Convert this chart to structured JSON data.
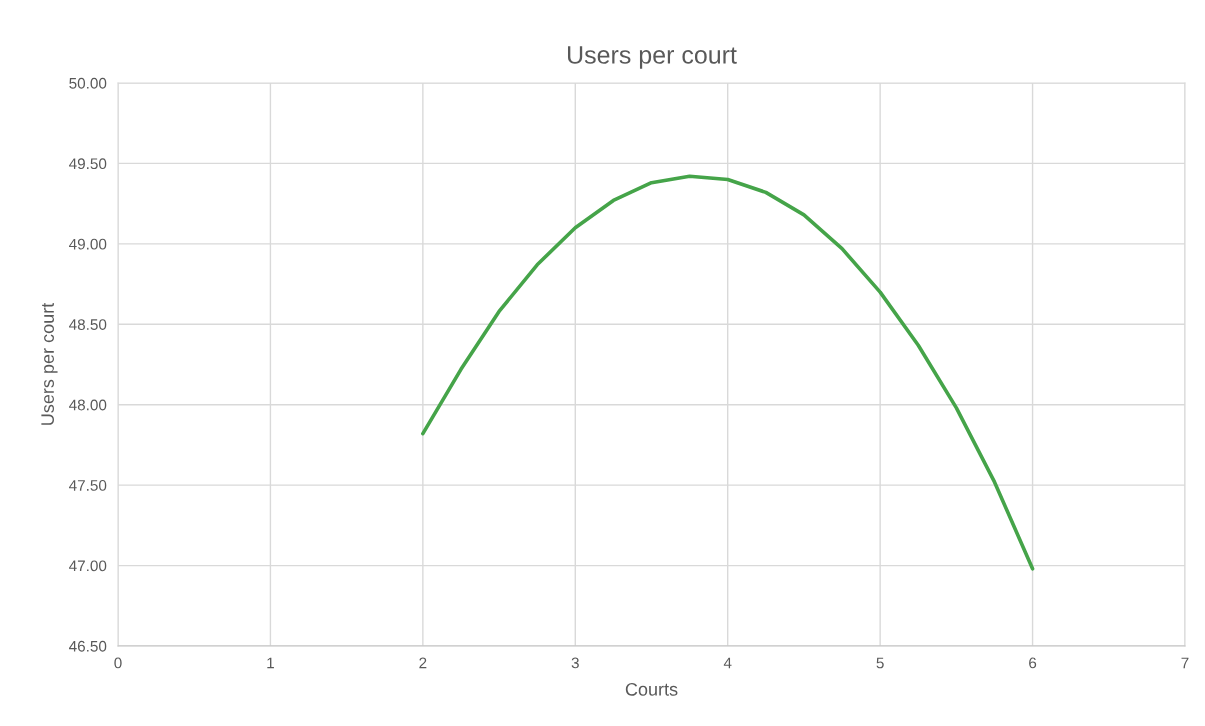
{
  "chart_data": {
    "type": "line",
    "title": "Users per court",
    "xlabel": "Courts",
    "ylabel": "Users per court",
    "x": [
      2.0,
      2.25,
      2.5,
      2.75,
      3.0,
      3.25,
      3.5,
      3.75,
      4.0,
      4.25,
      4.5,
      4.75,
      5.0,
      5.25,
      5.5,
      5.75,
      6.0
    ],
    "series": [
      {
        "color": "#45a449",
        "values": [
          47.82,
          48.22,
          48.58,
          48.87,
          49.1,
          49.27,
          49.38,
          49.42,
          49.4,
          49.32,
          49.18,
          48.97,
          48.7,
          48.37,
          47.98,
          47.52,
          46.98
        ]
      }
    ],
    "xlim": [
      0,
      7
    ],
    "xticks": [
      0,
      1,
      2,
      3,
      4,
      5,
      6,
      7
    ],
    "ylim": [
      46.5,
      50
    ],
    "yticks": [
      {
        "value": 46.5,
        "label": "46.50"
      },
      {
        "value": 47,
        "label": "47.00"
      },
      {
        "value": 47.5,
        "label": "47.50"
      },
      {
        "value": 48,
        "label": "48.00"
      },
      {
        "value": 48.5,
        "label": "48.50"
      },
      {
        "value": 49,
        "label": "49.00"
      },
      {
        "value": 49.5,
        "label": "49.50"
      },
      {
        "value": 50,
        "label": "50.00"
      }
    ],
    "grid": true,
    "legend": false,
    "marker": "none",
    "line_style": "solid"
  }
}
